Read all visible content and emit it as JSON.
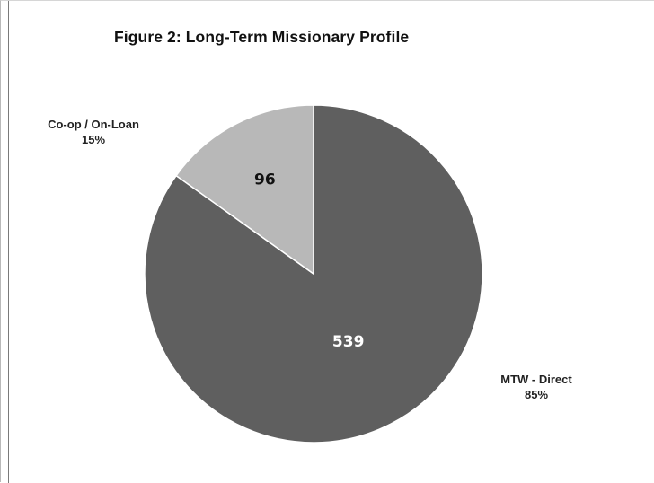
{
  "chart_data": {
    "type": "pie",
    "title": "Figure 2: Long-Term Missionary Profile",
    "categories": [
      "MTW - Direct",
      "Co-op / On-Loan"
    ],
    "values": [
      539,
      96
    ],
    "percent_labels": [
      "85%",
      "15%"
    ],
    "colors": [
      "#5f5f5f",
      "#b8b8b8"
    ],
    "value_label_colors": [
      "#ffffff",
      "#111111"
    ],
    "slice_border_color": "#ffffff",
    "legend": "none"
  }
}
